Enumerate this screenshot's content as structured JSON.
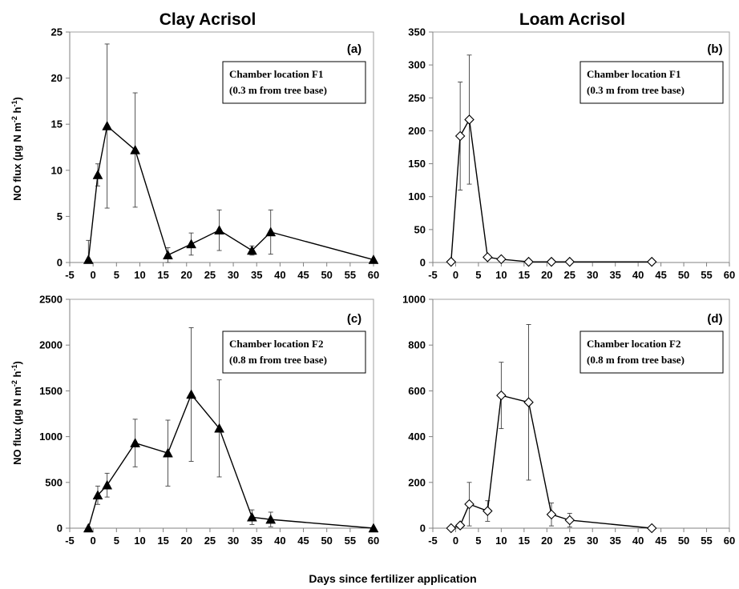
{
  "figure": {
    "col_titles": [
      "Clay Acrisol",
      "Loam Acrisol"
    ],
    "ylabel_main": "NO flux (µg N m",
    "ylabel_mid": " h",
    "ylabel_end": ")",
    "ylabel_sup1": "-2",
    "ylabel_sup2": "-1",
    "xlabel": "Days since fertilizer application"
  },
  "chart_data": [
    {
      "type": "line",
      "panel": "(a)",
      "title": "Clay Acrisol",
      "annotation": [
        "Chamber location F1",
        "(0.3 m from tree base)"
      ],
      "marker": "triangle",
      "xlim": [
        -5,
        60
      ],
      "ylim": [
        0,
        25
      ],
      "xticks": [
        -5,
        0,
        5,
        10,
        15,
        20,
        25,
        30,
        35,
        40,
        45,
        50,
        55,
        60
      ],
      "yticks": [
        0,
        5,
        10,
        15,
        20,
        25
      ],
      "x": [
        -1,
        1,
        3,
        9,
        16,
        21,
        27,
        34,
        38,
        60
      ],
      "y": [
        0.3,
        9.5,
        14.8,
        12.2,
        0.8,
        2.0,
        3.5,
        1.3,
        3.3,
        0.3
      ],
      "err": [
        2.1,
        1.2,
        8.9,
        6.2,
        0.8,
        1.2,
        2.2,
        0.5,
        2.4,
        0
      ]
    },
    {
      "type": "line",
      "panel": "(b)",
      "title": "Loam Acrisol",
      "annotation": [
        "Chamber location F1",
        "(0.3 m from tree base)"
      ],
      "marker": "diamond",
      "xlim": [
        -5,
        60
      ],
      "ylim": [
        0,
        350
      ],
      "xticks": [
        -5,
        0,
        5,
        10,
        15,
        20,
        25,
        30,
        35,
        40,
        45,
        50,
        55,
        60
      ],
      "yticks": [
        0,
        50,
        100,
        150,
        200,
        250,
        300,
        350
      ],
      "x": [
        -1,
        1,
        3,
        7,
        10,
        16,
        21,
        25,
        43
      ],
      "y": [
        1,
        192,
        217,
        8,
        5,
        1,
        1,
        1,
        1
      ],
      "err": [
        0,
        82,
        98,
        0,
        0,
        0,
        0,
        0,
        0
      ]
    },
    {
      "type": "line",
      "panel": "(c)",
      "annotation": [
        "Chamber location F2",
        "(0.8 m from tree base)"
      ],
      "marker": "triangle",
      "xlim": [
        -5,
        60
      ],
      "ylim": [
        0,
        2500
      ],
      "xticks": [
        -5,
        0,
        5,
        10,
        15,
        20,
        25,
        30,
        35,
        40,
        45,
        50,
        55,
        60
      ],
      "yticks": [
        0,
        500,
        1000,
        1500,
        2000,
        2500
      ],
      "x": [
        -1,
        1,
        3,
        9,
        16,
        21,
        27,
        34,
        38,
        60
      ],
      "y": [
        0,
        360,
        470,
        930,
        820,
        1460,
        1090,
        120,
        95,
        0
      ],
      "err": [
        0,
        100,
        130,
        260,
        360,
        730,
        530,
        80,
        80,
        0
      ]
    },
    {
      "type": "line",
      "panel": "(d)",
      "annotation": [
        "Chamber location F2",
        "(0.8 m from tree base)"
      ],
      "marker": "diamond",
      "xlim": [
        -5,
        60
      ],
      "ylim": [
        0,
        1000
      ],
      "xticks": [
        -5,
        0,
        5,
        10,
        15,
        20,
        25,
        30,
        35,
        40,
        45,
        50,
        55,
        60
      ],
      "yticks": [
        0,
        200,
        400,
        600,
        800,
        1000
      ],
      "x": [
        -1,
        1,
        3,
        7,
        10,
        16,
        21,
        25,
        43
      ],
      "y": [
        0,
        12,
        105,
        75,
        580,
        550,
        60,
        35,
        0
      ],
      "err": [
        0,
        10,
        95,
        45,
        145,
        340,
        50,
        30,
        0
      ]
    }
  ]
}
